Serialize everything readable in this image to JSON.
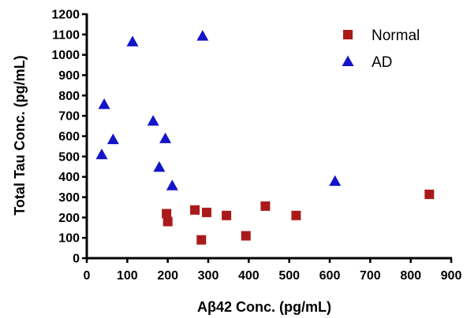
{
  "chart_data": {
    "type": "scatter",
    "xlabel": "Aβ42 Conc. (pg/mL)",
    "ylabel": "Total  Tau Conc. (pg/mL)",
    "xlim": [
      0,
      900
    ],
    "ylim": [
      0,
      1200
    ],
    "x_ticks": [
      "0",
      "100",
      "200",
      "300",
      "400",
      "500",
      "600",
      "700",
      "800",
      "900"
    ],
    "y_ticks": [
      "0",
      "100",
      "200",
      "300",
      "400",
      "500",
      "600",
      "700",
      "800",
      "900",
      "1000",
      "1100",
      "1200"
    ],
    "grid": false,
    "legend_position": "top-right",
    "series": [
      {
        "name": "Normal",
        "marker": "square",
        "color": "#aa1a1a",
        "points": [
          {
            "x": 197,
            "y": 219
          },
          {
            "x": 200,
            "y": 180
          },
          {
            "x": 267,
            "y": 237
          },
          {
            "x": 283,
            "y": 90
          },
          {
            "x": 296,
            "y": 225
          },
          {
            "x": 345,
            "y": 210
          },
          {
            "x": 393,
            "y": 110
          },
          {
            "x": 441,
            "y": 256
          },
          {
            "x": 517,
            "y": 210
          },
          {
            "x": 846,
            "y": 314
          }
        ]
      },
      {
        "name": "AD",
        "marker": "triangle",
        "color": "#1414c8",
        "points": [
          {
            "x": 37,
            "y": 510
          },
          {
            "x": 43,
            "y": 757
          },
          {
            "x": 65,
            "y": 584
          },
          {
            "x": 113,
            "y": 1065
          },
          {
            "x": 164,
            "y": 675
          },
          {
            "x": 179,
            "y": 448
          },
          {
            "x": 194,
            "y": 589
          },
          {
            "x": 211,
            "y": 357
          },
          {
            "x": 286,
            "y": 1093
          },
          {
            "x": 613,
            "y": 379
          }
        ]
      }
    ]
  }
}
